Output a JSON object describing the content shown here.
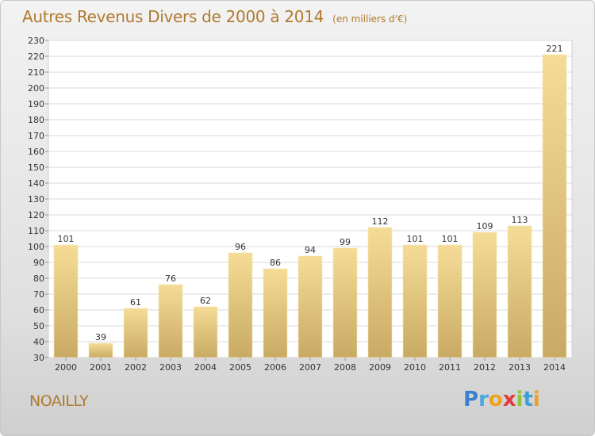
{
  "header": {
    "title": "Autres Revenus Divers de 2000 à 2014",
    "subtitle": "(en milliers d'€)"
  },
  "footer": {
    "commune": "NOAILLY",
    "logo_letters": [
      {
        "ch": "P",
        "color": "#3b7fd0"
      },
      {
        "ch": "r",
        "color": "#4aa8e0"
      },
      {
        "ch": "o",
        "color": "#f0a020"
      },
      {
        "ch": "x",
        "color": "#e03c3c"
      },
      {
        "ch": "i",
        "color": "#8cc63e"
      },
      {
        "ch": "t",
        "color": "#3b9fd8"
      },
      {
        "ch": "i",
        "color": "#f0a020"
      }
    ]
  },
  "colors": {
    "bar_top": "#f5dc96",
    "bar_bottom": "#c8aa64",
    "grid": "#d8d8d8",
    "axis_text": "#333333"
  },
  "chart_data": {
    "type": "bar",
    "title": "Autres Revenus Divers de 2000 à 2014",
    "subtitle": "(en milliers d'€)",
    "categories": [
      "2000",
      "2001",
      "2002",
      "2003",
      "2004",
      "2005",
      "2006",
      "2007",
      "2008",
      "2009",
      "2010",
      "2011",
      "2012",
      "2013",
      "2014"
    ],
    "values": [
      101,
      39,
      61,
      76,
      62,
      96,
      86,
      94,
      99,
      112,
      101,
      101,
      109,
      113,
      221
    ],
    "ylim": [
      30,
      230
    ],
    "yticks": [
      30,
      40,
      50,
      60,
      70,
      80,
      90,
      100,
      110,
      120,
      130,
      140,
      150,
      160,
      170,
      180,
      190,
      200,
      210,
      220,
      230
    ],
    "grid": true,
    "data_labels": true
  }
}
